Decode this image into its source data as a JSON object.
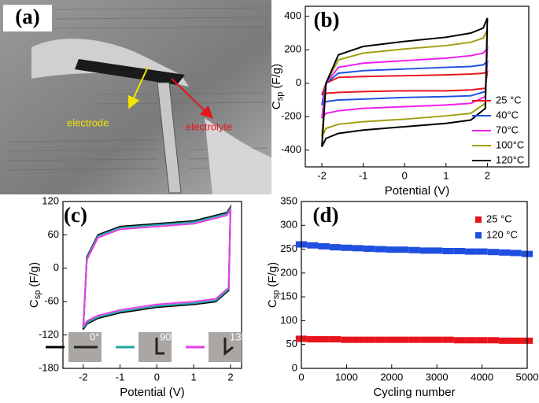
{
  "photo": {
    "label": "(a)",
    "annotations": [
      "electrode",
      "electrolyte"
    ]
  },
  "chart_data": [
    {
      "type": "line",
      "label": "(b)",
      "xlabel": "Potential (V)",
      "ylabel": {
        "text": "C",
        "subscript": "sp",
        "unit": "(F/g)"
      },
      "xlim": [
        -2.4,
        3
      ],
      "xticks": [
        -2,
        -1,
        0,
        1,
        2
      ],
      "ylim": [
        -500,
        460
      ],
      "yticks": [
        -400,
        -200,
        0,
        200,
        400
      ],
      "legend": "lower right",
      "x": [
        -2,
        -1.9,
        -1.6,
        -1,
        0,
        1,
        1.6,
        1.9,
        2,
        2,
        1.95,
        1.6,
        1,
        0,
        -1,
        -1.6,
        -1.9,
        -2
      ],
      "series": [
        {
          "name": "25 °C",
          "color": "#e8141b",
          "values": [
            -70,
            0,
            35,
            40,
            45,
            50,
            55,
            60,
            70,
            70,
            -30,
            -40,
            -45,
            -45,
            -50,
            -55,
            -60,
            -70
          ]
        },
        {
          "name": "40°C",
          "color": "#1f4fe0",
          "values": [
            -130,
            0,
            60,
            75,
            85,
            95,
            100,
            110,
            130,
            130,
            -50,
            -75,
            -80,
            -85,
            -95,
            -100,
            -110,
            -130
          ]
        },
        {
          "name": "70°C",
          "color": "#f01ef0",
          "values": [
            -210,
            0,
            95,
            120,
            135,
            150,
            165,
            180,
            210,
            210,
            -80,
            -120,
            -130,
            -140,
            -150,
            -165,
            -180,
            -210
          ]
        },
        {
          "name": "100°C",
          "color": "#a0a012",
          "values": [
            -320,
            0,
            140,
            180,
            205,
            225,
            245,
            270,
            320,
            320,
            -120,
            -180,
            -195,
            -215,
            -230,
            -245,
            -270,
            -320
          ]
        },
        {
          "name": "120°C",
          "color": "#000000",
          "values": [
            -380,
            0,
            170,
            220,
            250,
            275,
            300,
            330,
            390,
            390,
            -150,
            -220,
            -240,
            -260,
            -280,
            -300,
            -330,
            -380
          ]
        }
      ]
    },
    {
      "type": "line",
      "label": "(c)",
      "xlabel": "Potential (V)",
      "ylabel": {
        "text": "C",
        "subscript": "sp",
        "unit": "(F/g)"
      },
      "xlim": [
        -2.55,
        2.3
      ],
      "xticks": [
        -2,
        -1,
        0,
        1,
        2
      ],
      "ylim": [
        -180,
        120
      ],
      "yticks": [
        -180,
        -120,
        -60,
        0,
        60,
        120
      ],
      "legend": "bottom",
      "x": [
        -2,
        -1.9,
        -1.6,
        -1,
        0,
        1,
        1.6,
        1.9,
        2,
        2,
        1.95,
        1.6,
        1,
        0,
        -1,
        -1.6,
        -1.9,
        -2
      ],
      "series": [
        {
          "name": "0°",
          "color": "#000000",
          "values": [
            -110,
            20,
            60,
            75,
            80,
            85,
            95,
            100,
            110,
            110,
            -40,
            -60,
            -65,
            -70,
            -80,
            -90,
            -100,
            -110
          ]
        },
        {
          "name": "90°",
          "color": "#1fa5a0",
          "values": [
            -108,
            18,
            58,
            73,
            78,
            83,
            93,
            98,
            108,
            108,
            -38,
            -58,
            -63,
            -68,
            -78,
            -88,
            -98,
            -108
          ]
        },
        {
          "name": "135°",
          "color": "#e83ee8",
          "values": [
            -105,
            15,
            55,
            70,
            75,
            80,
            90,
            95,
            105,
            105,
            -35,
            -55,
            -60,
            -65,
            -75,
            -85,
            -95,
            -105
          ]
        }
      ]
    },
    {
      "type": "scatter",
      "label": "(d)",
      "xlabel": "Cycling number",
      "ylabel": {
        "text": "C",
        "subscript": "sp",
        "unit": "(F/g)"
      },
      "xlim": [
        0,
        5000
      ],
      "xticks": [
        0,
        1000,
        2000,
        3000,
        4000,
        5000
      ],
      "ylim": [
        0,
        350
      ],
      "yticks": [
        0,
        50,
        100,
        150,
        200,
        250,
        300,
        350
      ],
      "legend": "upper right",
      "x": [
        0,
        250,
        500,
        750,
        1000,
        1250,
        1500,
        1750,
        2000,
        2250,
        2500,
        2750,
        3000,
        3250,
        3500,
        3750,
        4000,
        4250,
        4500,
        4750,
        5000
      ],
      "series": [
        {
          "name": "25 °C",
          "color": "#e8141b",
          "values": [
            62,
            61,
            61,
            61,
            60,
            60,
            60,
            60,
            60,
            60,
            60,
            60,
            60,
            60,
            59,
            59,
            59,
            59,
            58,
            58,
            58
          ]
        },
        {
          "name": "120 °C",
          "color": "#1f4fe0",
          "values": [
            260,
            258,
            256,
            254,
            253,
            252,
            251,
            250,
            249,
            249,
            248,
            247,
            247,
            246,
            246,
            245,
            245,
            244,
            243,
            242,
            240
          ]
        }
      ]
    }
  ]
}
